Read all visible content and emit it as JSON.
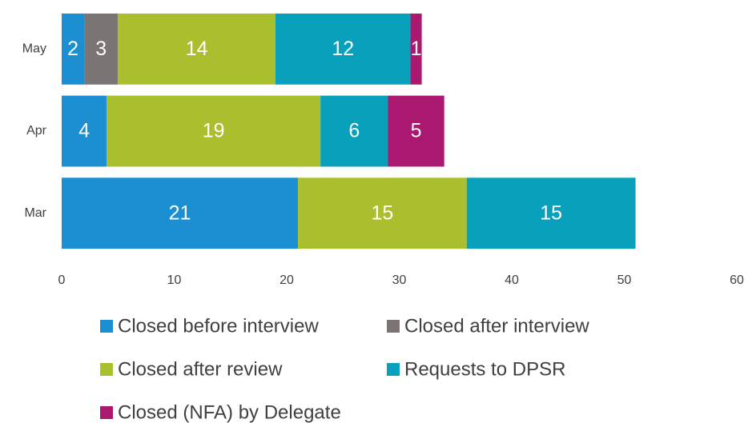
{
  "chart_data": {
    "type": "bar",
    "orientation": "horizontal",
    "stacked": true,
    "categories": [
      "May",
      "Apr",
      "Mar"
    ],
    "series": [
      {
        "name": "Closed before interview",
        "color": "#1b8fd2",
        "values": [
          2,
          4,
          21
        ]
      },
      {
        "name": "Closed after interview",
        "color": "#7a7474",
        "values": [
          3,
          null,
          null
        ]
      },
      {
        "name": "Closed after review",
        "color": "#a9bf2e",
        "values": [
          14,
          19,
          15
        ]
      },
      {
        "name": "Requests to DPSR",
        "color": "#08a0ba",
        "values": [
          12,
          6,
          15
        ]
      },
      {
        "name": "Closed (NFA) by Delegate",
        "color": "#ab1870",
        "values": [
          1,
          5,
          null
        ]
      }
    ],
    "xlim": [
      0,
      60
    ],
    "xticks": [
      0,
      10,
      20,
      30,
      40,
      50,
      60
    ],
    "grid": false,
    "legend": "bottom"
  }
}
